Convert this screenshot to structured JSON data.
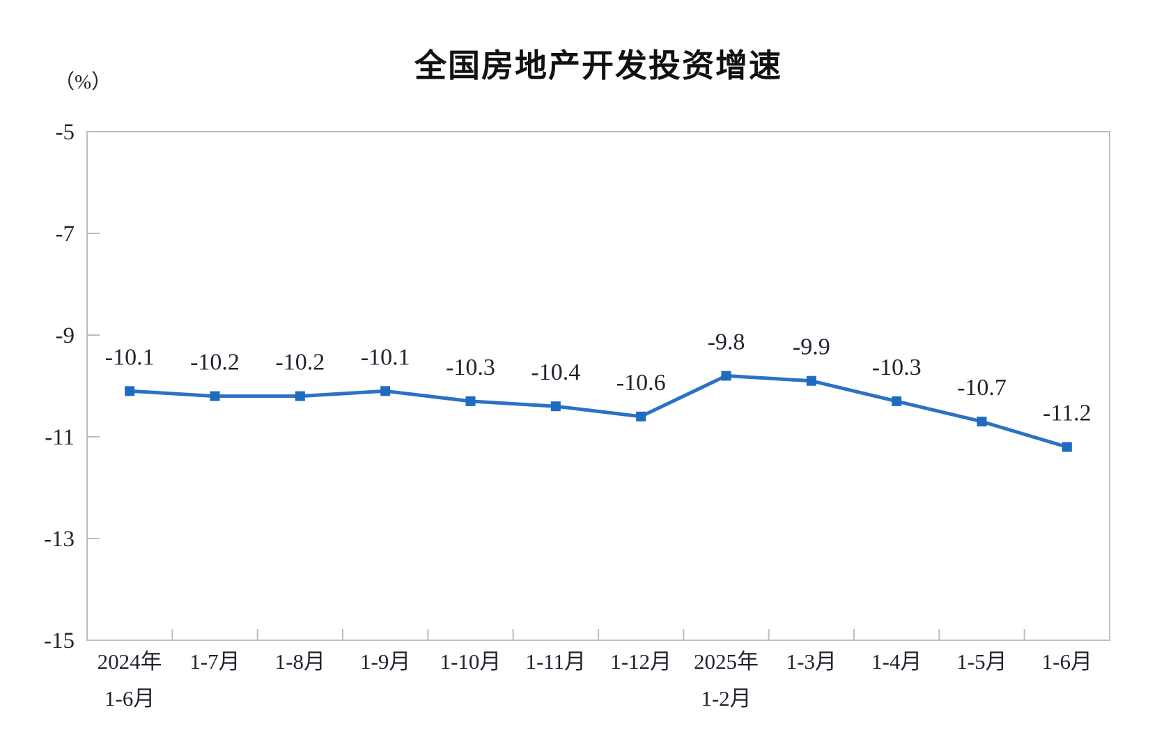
{
  "chart": {
    "colors": {
      "line": "#2b72c4",
      "marker": "#1f6bc2",
      "axis_border": "#bdbdbd",
      "label_text": "#20242e",
      "title_text": "#111111"
    }
  },
  "chart_data": {
    "type": "line",
    "title": "全国房地产开发投资增速",
    "ylabel": "（%）",
    "xlabel": "",
    "grid": false,
    "legend": "none",
    "marker_style": "square",
    "ylim": [
      -15,
      -5
    ],
    "yticks": [
      -5,
      -7,
      -9,
      -11,
      -13,
      -15
    ],
    "ytick_labels": [
      "-5",
      "-7",
      "-9",
      "-11",
      "-13",
      "-15"
    ],
    "categories": [
      [
        "2024年",
        "1-6月"
      ],
      [
        "1-7月"
      ],
      [
        "1-8月"
      ],
      [
        "1-9月"
      ],
      [
        "1-10月"
      ],
      [
        "1-11月"
      ],
      [
        "1-12月"
      ],
      [
        "2025年",
        "1-2月"
      ],
      [
        "1-3月"
      ],
      [
        "1-4月"
      ],
      [
        "1-5月"
      ],
      [
        "1-6月"
      ]
    ],
    "values": [
      -10.1,
      -10.2,
      -10.2,
      -10.1,
      -10.3,
      -10.4,
      -10.6,
      -9.8,
      -9.9,
      -10.3,
      -10.7,
      -11.2
    ],
    "data_labels": [
      "-10.1",
      "-10.2",
      "-10.2",
      "-10.1",
      "-10.3",
      "-10.4",
      "-10.6",
      "-9.8",
      "-9.9",
      "-10.3",
      "-10.7",
      "-11.2"
    ]
  }
}
